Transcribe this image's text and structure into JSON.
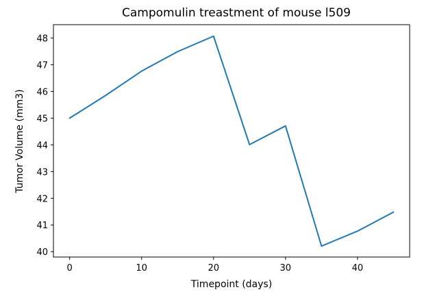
{
  "chart_data": {
    "type": "line",
    "title": "Campomulin treastment of mouse l509",
    "xlabel": "Timepoint (days)",
    "ylabel": "Tumor Volume (mm3)",
    "x": [
      0,
      5,
      10,
      15,
      20,
      25,
      30,
      35,
      40,
      45
    ],
    "series": [
      {
        "values": [
          45.0,
          45.85,
          46.76,
          47.49,
          48.07,
          44.01,
          44.71,
          40.21,
          40.77,
          41.48
        ],
        "color": "#1f77b4"
      }
    ],
    "xlim": [
      -2.25,
      47.25
    ],
    "ylim": [
      39.8,
      48.5
    ],
    "xticks": [
      0,
      10,
      20,
      30,
      40
    ],
    "yticks": [
      40,
      41,
      42,
      43,
      44,
      45,
      46,
      47,
      48
    ],
    "grid": false
  }
}
